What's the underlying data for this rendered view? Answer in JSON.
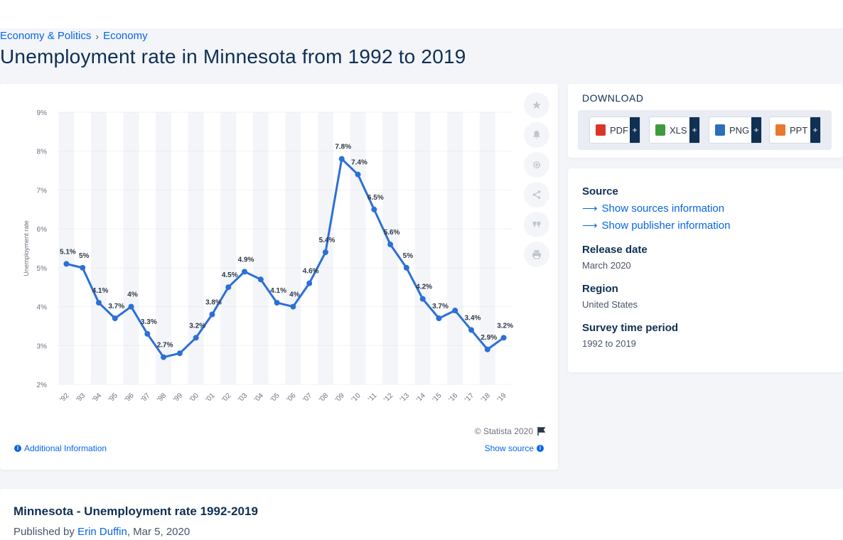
{
  "breadcrumb": {
    "items": [
      "Economy & Politics",
      "Economy"
    ],
    "separator": "›"
  },
  "page_title": "Unemployment rate in Minnesota from 1992 to 2019",
  "chart_footer": {
    "copyright": "© Statista 2020",
    "additional_info": "Additional Information",
    "show_source": "Show source"
  },
  "download": {
    "title": "DOWNLOAD",
    "buttons": [
      {
        "label": "PDF",
        "icon": "pdf-file-icon",
        "color": "#d9362b"
      },
      {
        "label": "XLS",
        "icon": "xls-file-icon",
        "color": "#3d9b3d"
      },
      {
        "label": "PNG",
        "icon": "png-file-icon",
        "color": "#2a6fb8"
      },
      {
        "label": "PPT",
        "icon": "ppt-file-icon",
        "color": "#e8782c"
      }
    ],
    "plus": "+"
  },
  "meta": {
    "source_heading": "Source",
    "show_sources": "Show sources information",
    "show_publisher": "Show publisher information",
    "release_heading": "Release date",
    "release_value": "March 2020",
    "region_heading": "Region",
    "region_value": "United States",
    "period_heading": "Survey time period",
    "period_value": "1992 to 2019"
  },
  "bottom": {
    "title": "Minnesota - Unemployment rate 1992-2019",
    "published_prefix": "Published by",
    "author": "Erin Duffin",
    "date": ", Mar 5, 2020"
  },
  "colors": {
    "line": "#2c6fd6",
    "title": "#0f2f53",
    "link": "#0666e5",
    "band": "#f3f5f9"
  },
  "side_icons": [
    "star-icon",
    "bell-icon",
    "gear-icon",
    "share-icon",
    "quote-icon",
    "print-icon"
  ],
  "chart_data": {
    "type": "line",
    "title": "",
    "xlabel": "",
    "ylabel": "Unemployment rate",
    "categories": [
      "'92",
      "'93",
      "'94",
      "'95",
      "'96",
      "'97",
      "'98",
      "'99",
      "'00",
      "'01",
      "'02",
      "'03",
      "'04",
      "'05",
      "'06",
      "'07",
      "'08",
      "'09",
      "'10",
      "'11",
      "'12",
      "'13",
      "'14",
      "'15",
      "'16",
      "'17",
      "'18",
      "'19"
    ],
    "values": [
      5.1,
      5.0,
      4.1,
      3.7,
      4.0,
      3.3,
      2.7,
      2.8,
      3.2,
      3.8,
      4.5,
      4.9,
      4.7,
      4.1,
      4.0,
      4.6,
      5.4,
      7.8,
      7.4,
      6.5,
      5.6,
      5.0,
      4.2,
      3.7,
      3.9,
      3.4,
      2.9,
      3.2
    ],
    "data_labels": [
      "5.1%",
      "5%",
      "4.1%",
      "3.7%",
      "4%",
      "3.3%",
      "2.7%",
      "",
      "3.2%",
      "3.8%",
      "4.5%",
      "4.9%",
      "",
      "4.1%",
      "4%",
      "4.6%",
      "5.4%",
      "7.8%",
      "7.4%",
      "6.5%",
      "5.6%",
      "5%",
      "4.2%",
      "3.7%",
      "",
      "3.4%",
      "2.9%",
      "3.2%"
    ],
    "yticks": [
      "2%",
      "3%",
      "4%",
      "5%",
      "6%",
      "7%",
      "8%",
      "9%"
    ],
    "ylim": [
      2,
      9
    ],
    "grid": true,
    "legend": "none"
  }
}
